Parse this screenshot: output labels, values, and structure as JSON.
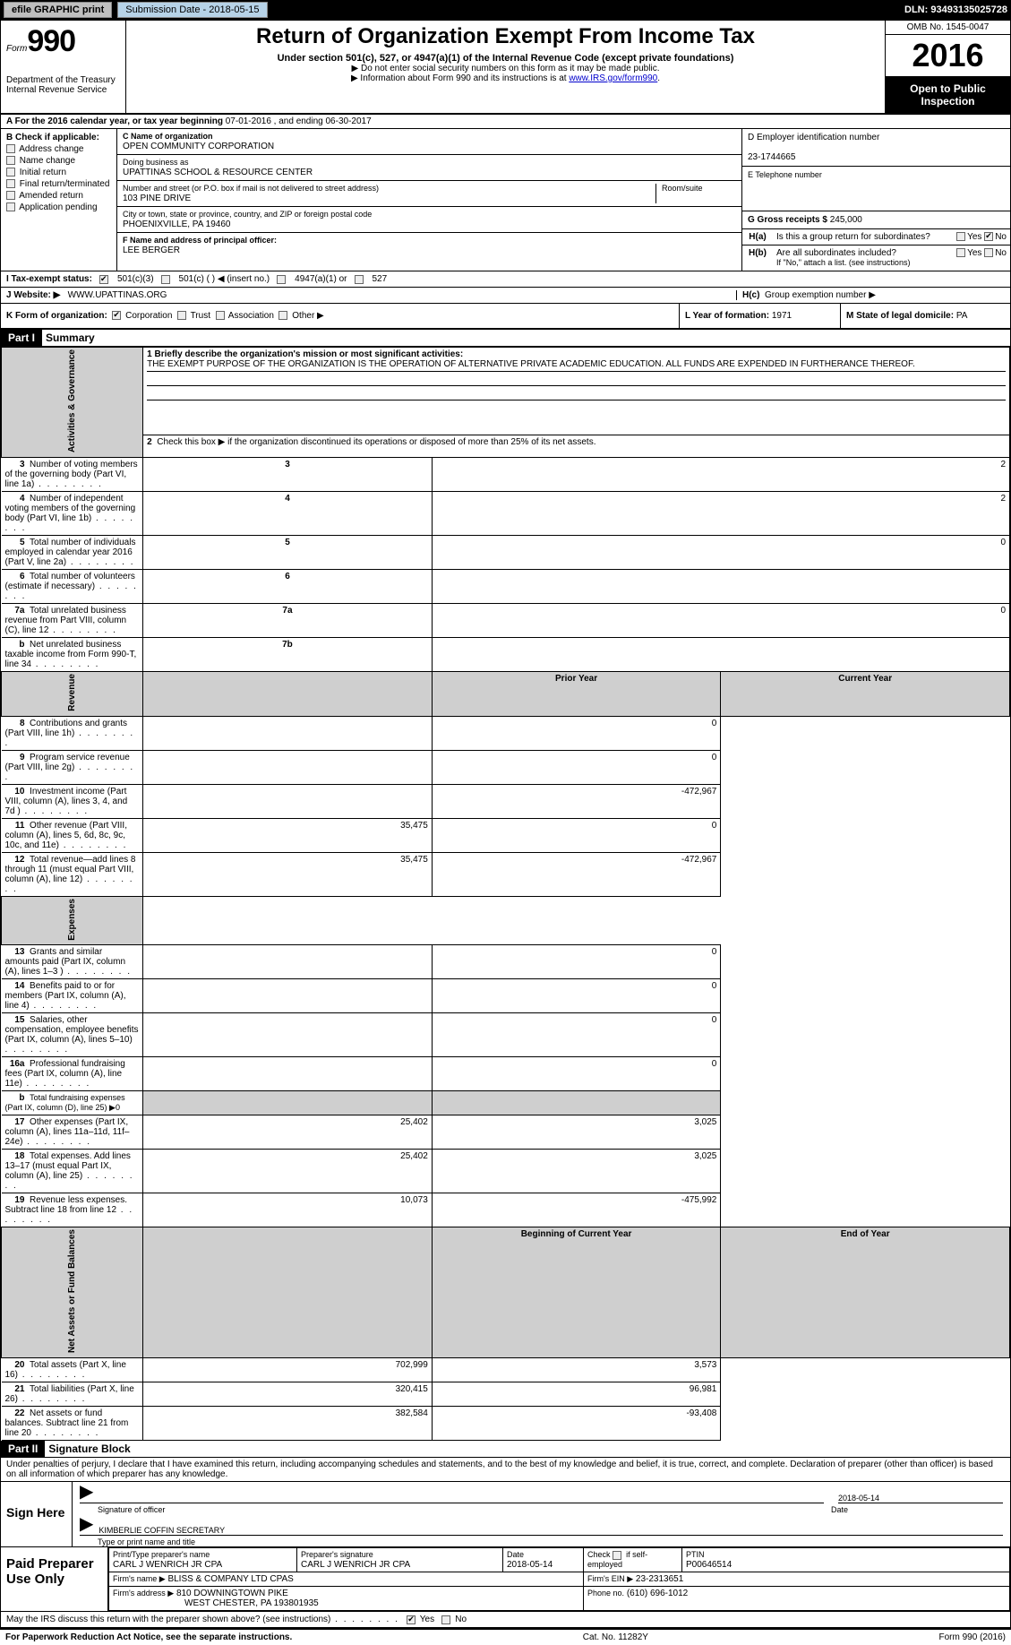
{
  "topbar": {
    "efile": "efile GRAPHIC print",
    "submission_label": "Submission Date - 2018-05-15",
    "dln": "DLN: 93493135025728"
  },
  "header": {
    "form_word": "Form",
    "form_num": "990",
    "dept": "Department of the Treasury\nInternal Revenue Service",
    "title": "Return of Organization Exempt From Income Tax",
    "under": "Under section 501(c), 527, or 4947(a)(1) of the Internal Revenue Code (except private foundations)",
    "tip1": "▶ Do not enter social security numbers on this form as it may be made public.",
    "tip2_pre": "▶ Information about Form 990 and its instructions is at ",
    "tip2_link": "www.IRS.gov/form990",
    "omb": "OMB No. 1545-0047",
    "year": "2016",
    "open": "Open to Public Inspection"
  },
  "rowA": {
    "text_pre": "A   For the 2016 calendar year, or tax year beginning ",
    "begin": "07-01-2016",
    "mid": " , and ending ",
    "end": "06-30-2017"
  },
  "colB": {
    "hdr": "B Check if applicable:",
    "items": [
      "Address change",
      "Name change",
      "Initial return",
      "Final return/terminated",
      "Amended return",
      "Application pending"
    ]
  },
  "boxC": {
    "lbl": "C Name of organization",
    "name": "OPEN COMMUNITY CORPORATION",
    "dba_lbl": "Doing business as",
    "dba": "UPATTINAS SCHOOL & RESOURCE CENTER",
    "addr_lbl": "Number and street (or P.O. box if mail is not delivered to street address)",
    "room_lbl": "Room/suite",
    "addr": "103 PINE DRIVE",
    "city_lbl": "City or town, state or province, country, and ZIP or foreign postal code",
    "city": "PHOENIXVILLE, PA  19460"
  },
  "boxD": {
    "lbl": "D Employer identification number",
    "val": "23-1744665"
  },
  "boxE": {
    "lbl": "E Telephone number",
    "val": ""
  },
  "boxG": {
    "lbl": "G Gross receipts $",
    "val": "245,000"
  },
  "boxF": {
    "lbl": "F  Name and address of principal officer:",
    "val": "LEE BERGER"
  },
  "boxH": {
    "ha": "H(a)",
    "ha_txt": "Is this a group return for subordinates?",
    "hb": "H(b)",
    "hb_txt": "Are all subordinates included?",
    "hb_note": "If \"No,\" attach a list. (see instructions)",
    "hc": "H(c)",
    "hc_txt": "Group exemption number ▶",
    "yes": "Yes",
    "no": "No"
  },
  "rowI": {
    "lbl": "I    Tax-exempt status:",
    "o1": "501(c)(3)",
    "o2": "501(c) (  ) ◀ (insert no.)",
    "o3": "4947(a)(1) or",
    "o4": "527"
  },
  "rowJ": {
    "lbl": "J    Website: ▶",
    "val": "WWW.UPATTINAS.ORG"
  },
  "rowK": {
    "lbl": "K Form of organization:",
    "opts": [
      "Corporation",
      "Trust",
      "Association",
      "Other ▶"
    ]
  },
  "rowL": {
    "lbl": "L Year of formation:",
    "val": "1971"
  },
  "rowM": {
    "lbl": "M State of legal domicile:",
    "val": "PA"
  },
  "part1": {
    "hdr": "Part I",
    "title": "Summary",
    "q1_lbl": "1   Briefly describe the organization's mission or most significant activities:",
    "q1_txt": "THE EXEMPT PURPOSE OF THE ORGANIZATION IS THE OPERATION OF ALTERNATIVE PRIVATE ACADEMIC EDUCATION. ALL FUNDS ARE EXPENDED IN FURTHERANCE THEREOF.",
    "q2": "Check this box ▶        if the organization discontinued its operations or disposed of more than 25% of its net assets.",
    "sections": {
      "gov": "Activities & Governance",
      "rev": "Revenue",
      "exp": "Expenses",
      "net": "Net Assets or Fund Balances"
    },
    "lines_gov": [
      {
        "n": "3",
        "d": "Number of voting members of the governing body (Part VI, line 1a)",
        "k": "3",
        "v": "2"
      },
      {
        "n": "4",
        "d": "Number of independent voting members of the governing body (Part VI, line 1b)",
        "k": "4",
        "v": "2"
      },
      {
        "n": "5",
        "d": "Total number of individuals employed in calendar year 2016 (Part V, line 2a)",
        "k": "5",
        "v": "0"
      },
      {
        "n": "6",
        "d": "Total number of volunteers (estimate if necessary)",
        "k": "6",
        "v": ""
      },
      {
        "n": "7a",
        "d": "Total unrelated business revenue from Part VIII, column (C), line 12",
        "k": "7a",
        "v": "0"
      },
      {
        "n": "b",
        "d": "Net unrelated business taxable income from Form 990-T, line 34",
        "k": "7b",
        "v": ""
      }
    ],
    "col_py": "Prior Year",
    "col_cy": "Current Year",
    "lines_rev": [
      {
        "n": "8",
        "d": "Contributions and grants (Part VIII, line 1h)",
        "py": "",
        "cy": "0"
      },
      {
        "n": "9",
        "d": "Program service revenue (Part VIII, line 2g)",
        "py": "",
        "cy": "0"
      },
      {
        "n": "10",
        "d": "Investment income (Part VIII, column (A), lines 3, 4, and 7d )",
        "py": "",
        "cy": "-472,967"
      },
      {
        "n": "11",
        "d": "Other revenue (Part VIII, column (A), lines 5, 6d, 8c, 9c, 10c, and 11e)",
        "py": "35,475",
        "cy": "0"
      },
      {
        "n": "12",
        "d": "Total revenue—add lines 8 through 11 (must equal Part VIII, column (A), line 12)",
        "py": "35,475",
        "cy": "-472,967"
      }
    ],
    "lines_exp": [
      {
        "n": "13",
        "d": "Grants and similar amounts paid (Part IX, column (A), lines 1–3 )",
        "py": "",
        "cy": "0"
      },
      {
        "n": "14",
        "d": "Benefits paid to or for members (Part IX, column (A), line 4)",
        "py": "",
        "cy": "0"
      },
      {
        "n": "15",
        "d": "Salaries, other compensation, employee benefits (Part IX, column (A), lines 5–10)",
        "py": "",
        "cy": "0"
      },
      {
        "n": "16a",
        "d": "Professional fundraising fees (Part IX, column (A), line 11e)",
        "py": "",
        "cy": "0"
      },
      {
        "n": "b",
        "d": "Total fundraising expenses (Part IX, column (D), line 25) ▶0",
        "shade": true
      },
      {
        "n": "17",
        "d": "Other expenses (Part IX, column (A), lines 11a–11d, 11f–24e)",
        "py": "25,402",
        "cy": "3,025"
      },
      {
        "n": "18",
        "d": "Total expenses. Add lines 13–17 (must equal Part IX, column (A), line 25)",
        "py": "25,402",
        "cy": "3,025"
      },
      {
        "n": "19",
        "d": "Revenue less expenses. Subtract line 18 from line 12",
        "py": "10,073",
        "cy": "-475,992"
      }
    ],
    "col_boy": "Beginning of Current Year",
    "col_eoy": "End of Year",
    "lines_net": [
      {
        "n": "20",
        "d": "Total assets (Part X, line 16)",
        "py": "702,999",
        "cy": "3,573"
      },
      {
        "n": "21",
        "d": "Total liabilities (Part X, line 26)",
        "py": "320,415",
        "cy": "96,981"
      },
      {
        "n": "22",
        "d": "Net assets or fund balances. Subtract line 21 from line 20",
        "py": "382,584",
        "cy": "-93,408"
      }
    ]
  },
  "part2": {
    "hdr": "Part II",
    "title": "Signature Block",
    "decl": "Under penalties of perjury, I declare that I have examined this return, including accompanying schedules and statements, and to the best of my knowledge and belief, it is true, correct, and complete. Declaration of preparer (other than officer) is based on all information of which preparer has any knowledge.",
    "sign_here": "Sign Here",
    "sig_officer": "Signature of officer",
    "sig_date": "2018-05-14",
    "date_lbl": "Date",
    "name_typed": "KIMBERLIE COFFIN  SECRETARY",
    "name_lbl": "Type or print name and title"
  },
  "paid": {
    "hdr": "Paid Preparer Use Only",
    "c1": "Print/Type preparer's name",
    "v1": "CARL J WENRICH JR CPA",
    "c2": "Preparer's signature",
    "v2": "CARL J WENRICH JR CPA",
    "c3": "Date",
    "v3": "2018-05-14",
    "c4_a": "Check",
    "c4_b": "if self-employed",
    "c5": "PTIN",
    "v5": "P00646514",
    "firm_name_lbl": "Firm's name     ▶",
    "firm_name": "BLISS & COMPANY LTD CPAS",
    "firm_addr_lbl": "Firm's address ▶",
    "firm_addr": "810 DOWNINGTOWN PIKE",
    "firm_city": "WEST CHESTER, PA  193801935",
    "ein_lbl": "Firm's EIN ▶",
    "ein": "23-2313651",
    "phone_lbl": "Phone no.",
    "phone": "(610) 696-1012"
  },
  "discuss": {
    "txt": "May the IRS discuss this return with the preparer shown above? (see instructions)",
    "yes": "Yes",
    "no": "No"
  },
  "footer": {
    "l": "For Paperwork Reduction Act Notice, see the separate instructions.",
    "c": "Cat. No. 11282Y",
    "r": "Form 990 (2016)"
  }
}
